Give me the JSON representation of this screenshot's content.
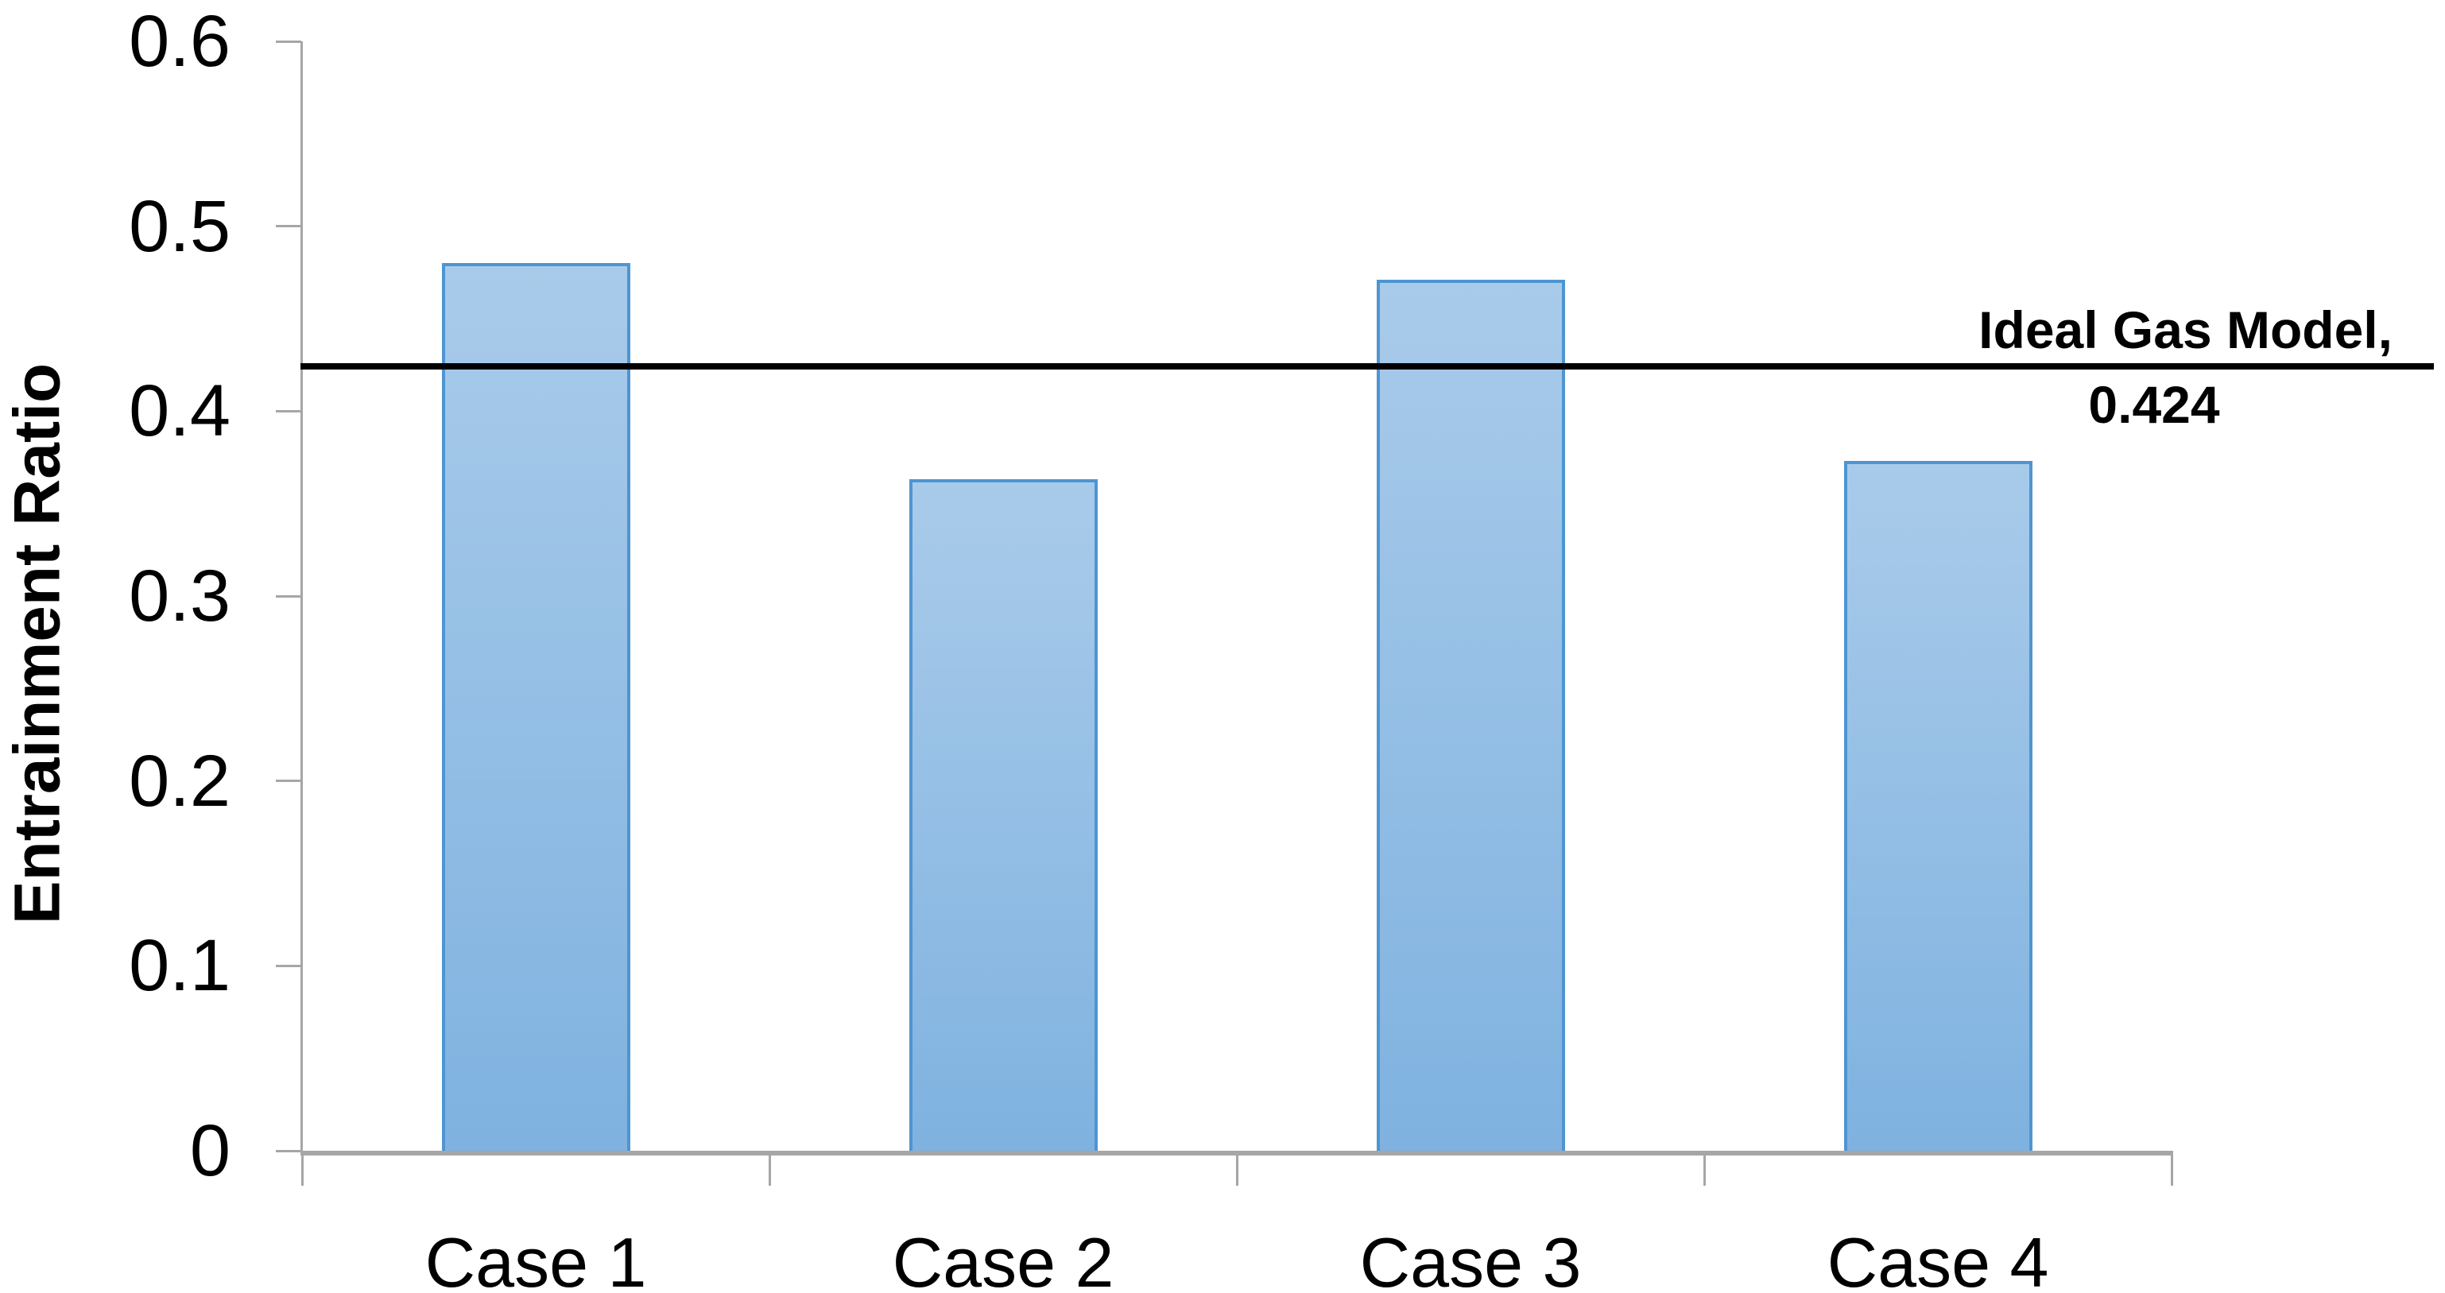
{
  "chart_data": {
    "type": "bar",
    "title": "",
    "categories": [
      "Case 1",
      "Case 2",
      "Case 3",
      "Case 4"
    ],
    "values": [
      0.48,
      0.363,
      0.471,
      0.373
    ],
    "xlabel": "",
    "ylabel": "Entrainment Ratio",
    "ylim": [
      0,
      0.6
    ],
    "ytick_step": 0.1,
    "ytick_labels": [
      "0",
      "0.1",
      "0.2",
      "0.3",
      "0.4",
      "0.5",
      "0.6"
    ],
    "grid": false,
    "legend": "none",
    "reference_line": {
      "value": 0.424,
      "label_line1": "Ideal Gas Model,",
      "label_line2": "0.424",
      "color": "#000000"
    },
    "colors": {
      "bar_fill_top": "#a9cbea",
      "bar_fill_bottom": "#7fb2e0",
      "bar_border": "#4e95d1",
      "axis": "#a6a6a6",
      "text": "#000000",
      "background": "#ffffff"
    }
  }
}
